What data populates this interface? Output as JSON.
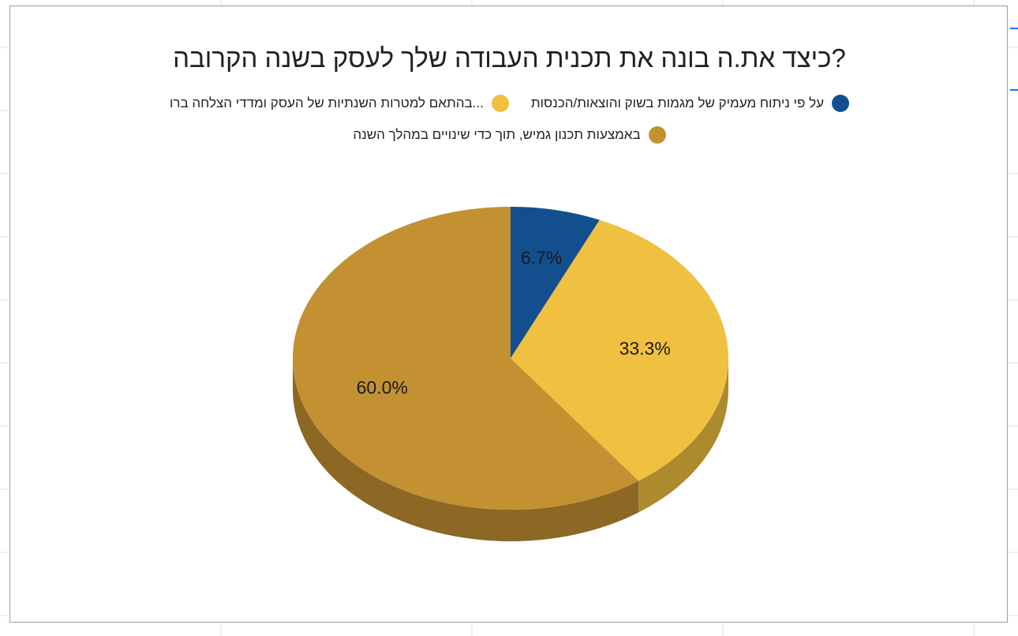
{
  "chart_data": {
    "type": "pie",
    "title": "?כיצד את.ה בונה את תכנית העבודה שלך לעסק בשנה הקרובה",
    "legend_position": "top",
    "slices": [
      {
        "label": "על פי ניתוח מעמיק של מגמות בשוק והוצאות/הכנסות",
        "value": 6.7,
        "display": "6.7%",
        "color": "#134f8f"
      },
      {
        "label": "...בהתאם למטרות השנתיות של העסק ומדדי הצלחה ברו",
        "value": 33.3,
        "display": "33.3%",
        "color": "#f0c040"
      },
      {
        "label": "באמצעות תכנון גמיש, תוך כדי שינויים במהלך השנה",
        "value": 60.0,
        "display": "60.0%",
        "color": "#c39132"
      }
    ]
  }
}
